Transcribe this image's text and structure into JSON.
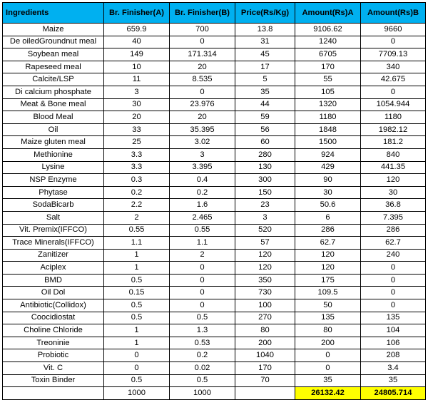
{
  "headers": [
    "Ingredients",
    "Br. Finisher(A)",
    "Br. Finisher(B)",
    "Price(Rs/Kg)",
    "Amount(Rs)A",
    "Amount(Rs)B"
  ],
  "rows": [
    [
      "Maize",
      "659.9",
      "700",
      "13.8",
      "9106.62",
      "9660"
    ],
    [
      "De oiledGroundnut meal",
      "40",
      "0",
      "31",
      "1240",
      "0"
    ],
    [
      "Soybean meal",
      "149",
      "171.314",
      "45",
      "6705",
      "7709.13"
    ],
    [
      "Rapeseed meal",
      "10",
      "20",
      "17",
      "170",
      "340"
    ],
    [
      "Calcite/LSP",
      "11",
      "8.535",
      "5",
      "55",
      "42.675"
    ],
    [
      "Di calcium phosphate",
      "3",
      "0",
      "35",
      "105",
      "0"
    ],
    [
      "Meat & Bone meal",
      "30",
      "23.976",
      "44",
      "1320",
      "1054.944"
    ],
    [
      "Blood Meal",
      "20",
      "20",
      "59",
      "1180",
      "1180"
    ],
    [
      "Oil",
      "33",
      "35.395",
      "56",
      "1848",
      "1982.12"
    ],
    [
      "Maize gluten meal",
      "25",
      "3.02",
      "60",
      "1500",
      "181.2"
    ],
    [
      "Methionine",
      "3.3",
      "3",
      "280",
      "924",
      "840"
    ],
    [
      "Lysine",
      "3.3",
      "3.395",
      "130",
      "429",
      "441.35"
    ],
    [
      "NSP Enzyme",
      "0.3",
      "0.4",
      "300",
      "90",
      "120"
    ],
    [
      "Phytase",
      "0.2",
      "0.2",
      "150",
      "30",
      "30"
    ],
    [
      "SodaBicarb",
      "2.2",
      "1.6",
      "23",
      "50.6",
      "36.8"
    ],
    [
      "Salt",
      "2",
      "2.465",
      "3",
      "6",
      "7.395"
    ],
    [
      "Vit. Premix(IFFCO)",
      "0.55",
      "0.55",
      "520",
      "286",
      "286"
    ],
    [
      "Trace Minerals(IFFCO)",
      "1.1",
      "1.1",
      "57",
      "62.7",
      "62.7"
    ],
    [
      "Zanitizer",
      "1",
      "2",
      "120",
      "120",
      "240"
    ],
    [
      "Aciplex",
      "1",
      "0",
      "120",
      "120",
      "0"
    ],
    [
      "BMD",
      "0.5",
      "0",
      "350",
      "175",
      "0"
    ],
    [
      "Oil Dol",
      "0.15",
      "0",
      "730",
      "109.5",
      "0"
    ],
    [
      "Antibiotic(Collidox)",
      "0.5",
      "0",
      "100",
      "50",
      "0"
    ],
    [
      "Coocidiostat",
      "0.5",
      "0.5",
      "270",
      "135",
      "135"
    ],
    [
      "Choline Chloride",
      "1",
      "1.3",
      "80",
      "80",
      "104"
    ],
    [
      "Treoninie",
      "1",
      "0.53",
      "200",
      "200",
      "106"
    ],
    [
      "Probiotic",
      "0",
      "0.2",
      "1040",
      "0",
      "208"
    ],
    [
      "Vit. C",
      "0",
      "0.02",
      "170",
      "0",
      "3.4"
    ],
    [
      "Toxin Binder",
      "0.5",
      "0.5",
      "70",
      "35",
      "35"
    ]
  ],
  "totals": [
    "",
    "1000",
    "1000",
    "",
    "26132.42",
    "24805.714"
  ],
  "colors": {
    "header_bg": "#00b0f0",
    "total_highlight": "#ffff00",
    "border": "#000000"
  }
}
